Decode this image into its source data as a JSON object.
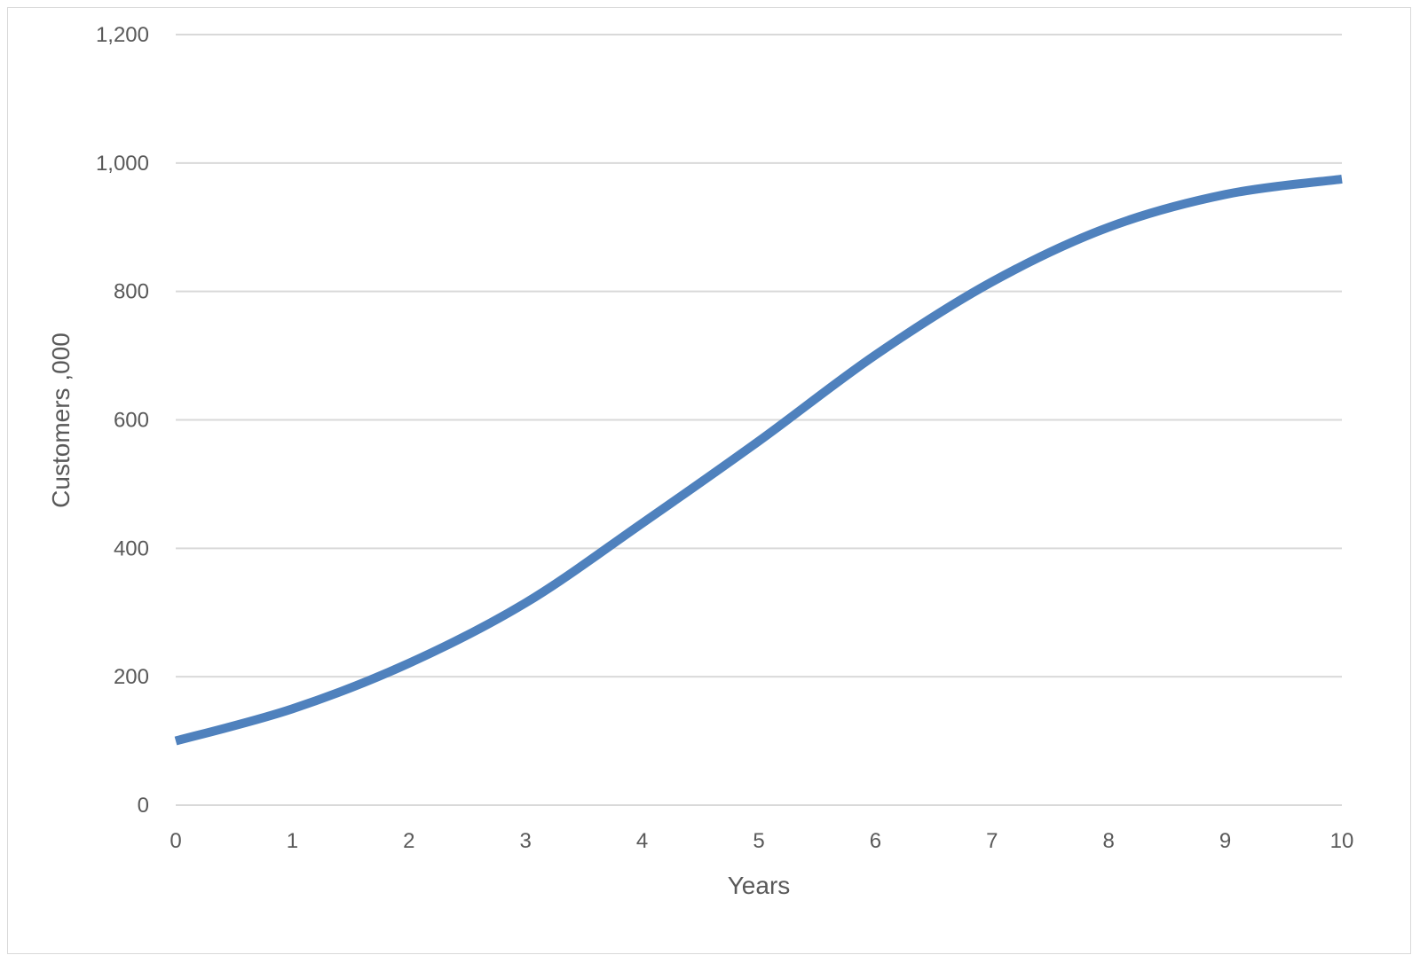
{
  "chart_data": {
    "type": "line",
    "title": "",
    "xlabel": "Years",
    "ylabel": "Customers ,000",
    "xlim": [
      0,
      10
    ],
    "ylim": [
      0,
      1200
    ],
    "x_ticks": [
      "0",
      "1",
      "2",
      "3",
      "4",
      "5",
      "6",
      "7",
      "8",
      "9",
      "10"
    ],
    "y_ticks": [
      "0",
      "200",
      "400",
      "600",
      "800",
      "1,000",
      "1,200"
    ],
    "y_tick_values": [
      0,
      200,
      400,
      600,
      800,
      1000,
      1200
    ],
    "grid": "horizontal",
    "legend": "none",
    "series": [
      {
        "color": "#4f81bd",
        "x": [
          0,
          1,
          2,
          3,
          4,
          5,
          6,
          7,
          8,
          9,
          10
        ],
        "values": [
          100,
          150,
          221,
          315,
          439,
          567,
          701,
          815,
          900,
          951,
          975
        ]
      }
    ]
  }
}
